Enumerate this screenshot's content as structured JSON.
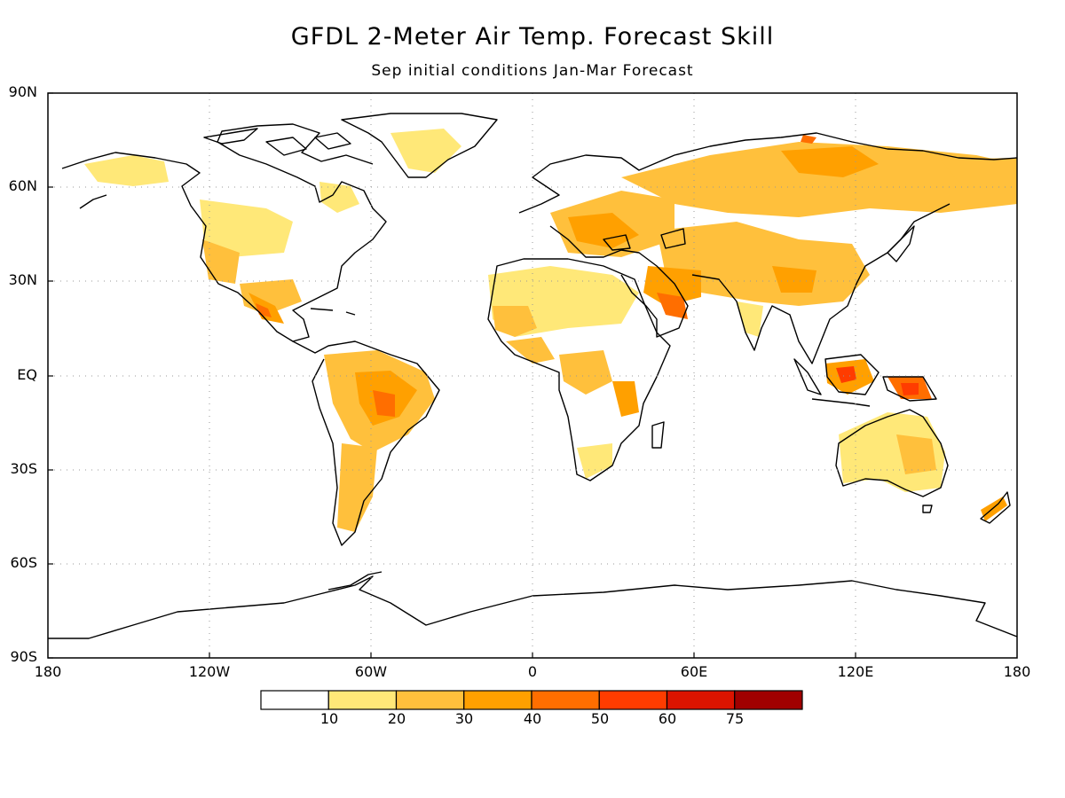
{
  "title": "GFDL 2-Meter Air Temp. Forecast Skill",
  "subtitle": "Sep initial conditions  Jan-Mar Forecast",
  "lat_labels": [
    "90N",
    "60N",
    "30N",
    "EQ",
    "30S",
    "60S",
    "90S"
  ],
  "lon_labels": [
    "180",
    "120W",
    "60W",
    "0",
    "60E",
    "120E",
    "180"
  ],
  "colorbar": {
    "labels": [
      "10",
      "20",
      "30",
      "40",
      "50",
      "60",
      "75"
    ],
    "colors": [
      "#ffffff",
      "#ffe878",
      "#ffc03c",
      "#ffa000",
      "#ff6e00",
      "#ff3c00",
      "#dc1400",
      "#a00000"
    ]
  },
  "gridlines": "dotted",
  "colors": {
    "background": "#ffffff",
    "coastline": "#000000"
  }
}
